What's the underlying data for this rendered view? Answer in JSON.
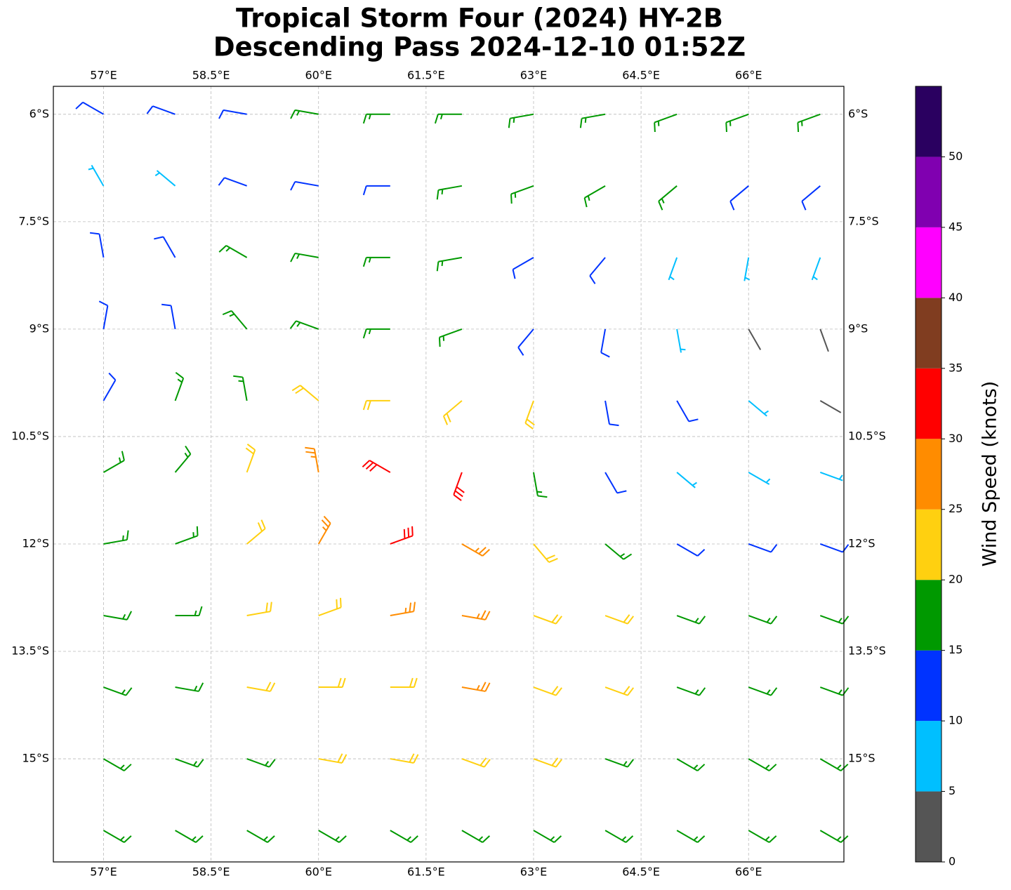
{
  "chart_data": {
    "type": "barbs",
    "title": [
      "Tropical Storm Four (2024) HY-2B",
      "Descending Pass 2024-12-10 01:52Z"
    ],
    "xlim": [
      56.3,
      67.33
    ],
    "ylim": [
      -16.44,
      -5.61
    ],
    "xticks": [
      {
        "value": 57,
        "label": "57°E"
      },
      {
        "value": 58.5,
        "label": "58.5°E"
      },
      {
        "value": 60,
        "label": "60°E"
      },
      {
        "value": 61.5,
        "label": "61.5°E"
      },
      {
        "value": 63,
        "label": "63°E"
      },
      {
        "value": 64.5,
        "label": "64.5°E"
      },
      {
        "value": 66,
        "label": "66°E"
      }
    ],
    "yticks": [
      {
        "value": -6,
        "label": "6°S"
      },
      {
        "value": -7.5,
        "label": "7.5°S"
      },
      {
        "value": -9,
        "label": "9°S"
      },
      {
        "value": -10.5,
        "label": "10.5°S"
      },
      {
        "value": -12,
        "label": "12°S"
      },
      {
        "value": -13.5,
        "label": "13.5°S"
      },
      {
        "value": -15,
        "label": "15°S"
      }
    ],
    "grid": true,
    "lon": [
      57,
      58,
      59,
      60,
      61,
      62,
      63,
      64,
      65,
      66,
      67
    ],
    "lat": [
      -6,
      -7,
      -8,
      -9,
      -10,
      -11,
      -12,
      -13,
      -14,
      -15,
      -16
    ],
    "speed": [
      [
        12,
        12,
        14,
        16,
        17,
        17,
        17,
        17,
        17,
        17,
        16
      ],
      [
        9,
        9,
        13,
        14,
        14,
        16,
        17,
        17,
        16,
        14,
        13
      ],
      [
        12,
        13,
        16,
        16,
        16,
        17,
        14,
        13,
        9,
        8,
        9
      ],
      [
        12,
        14,
        16,
        18,
        19,
        16,
        14,
        12,
        8,
        4,
        4
      ],
      [
        14,
        16,
        18,
        22,
        24,
        24,
        20,
        14,
        10,
        6,
        3
      ],
      [
        17,
        18,
        22,
        26,
        32,
        30,
        18,
        13,
        9,
        7,
        5
      ],
      [
        17,
        18,
        21,
        26,
        30,
        27,
        22,
        16,
        13,
        12,
        12
      ],
      [
        17,
        18,
        21,
        24,
        27,
        28,
        24,
        22,
        18,
        16,
        16
      ],
      [
        17,
        18,
        20,
        23,
        24,
        26,
        23,
        21,
        19,
        18,
        18
      ],
      [
        17,
        18,
        18,
        21,
        23,
        22,
        22,
        19,
        18,
        18,
        18
      ],
      [
        17,
        17,
        18,
        18,
        18,
        18,
        18,
        18,
        18,
        18,
        18
      ]
    ],
    "direction": [
      [
        300,
        290,
        280,
        280,
        270,
        270,
        260,
        260,
        250,
        250,
        250
      ],
      [
        330,
        310,
        290,
        280,
        270,
        260,
        250,
        240,
        230,
        230,
        230
      ],
      [
        350,
        330,
        300,
        280,
        270,
        260,
        240,
        220,
        200,
        190,
        200
      ],
      [
        10,
        350,
        320,
        290,
        270,
        250,
        220,
        190,
        170,
        150,
        160
      ],
      [
        30,
        20,
        350,
        310,
        270,
        230,
        200,
        170,
        150,
        130,
        120
      ],
      [
        60,
        40,
        20,
        350,
        300,
        200,
        170,
        150,
        130,
        120,
        110
      ],
      [
        80,
        70,
        50,
        30,
        70,
        120,
        140,
        130,
        120,
        110,
        110
      ],
      [
        100,
        90,
        80,
        70,
        80,
        100,
        110,
        110,
        110,
        110,
        110
      ],
      [
        110,
        100,
        100,
        90,
        90,
        100,
        110,
        110,
        110,
        110,
        110
      ],
      [
        120,
        110,
        110,
        100,
        100,
        110,
        110,
        110,
        120,
        120,
        120
      ],
      [
        120,
        120,
        120,
        120,
        120,
        120,
        120,
        120,
        120,
        120,
        120
      ]
    ],
    "colorbar": {
      "label": "Wind Speed (knots)",
      "lim": [
        0,
        55
      ],
      "bounds": [
        0,
        5,
        10,
        15,
        20,
        25,
        30,
        35,
        40,
        45,
        50,
        55
      ],
      "colors": [
        "#555555",
        "#00bfff",
        "#0033ff",
        "#009900",
        "#ffd010",
        "#ff8c00",
        "#ff0000",
        "#803d20",
        "#ff00ff",
        "#8000b0",
        "#2a0060"
      ],
      "ticks": [
        0,
        5,
        10,
        15,
        20,
        25,
        30,
        35,
        40,
        45,
        50
      ]
    }
  }
}
